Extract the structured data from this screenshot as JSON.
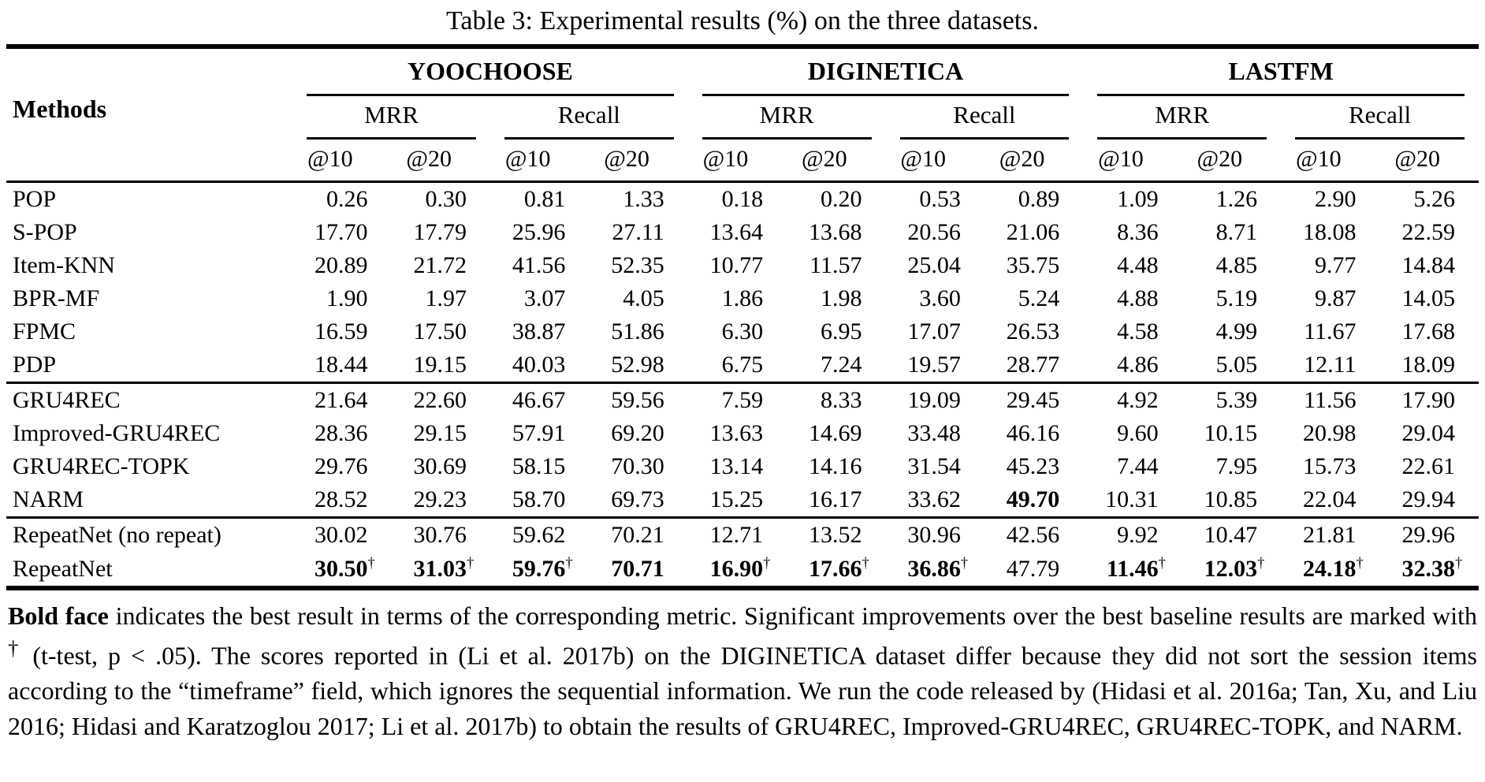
{
  "caption": "Table 3: Experimental results (%) on the three datasets.",
  "table": {
    "methods_label": "Methods",
    "dataset_groups": [
      "YOOCHOOSE",
      "DIGINETICA",
      "LASTFM"
    ],
    "metric_labels": [
      "MRR",
      "Recall"
    ],
    "cutoff_labels": [
      "@10",
      "@20"
    ],
    "sections": [
      {
        "name": "popularity-baselines",
        "rows": [
          {
            "method": "POP",
            "values": [
              "0.26",
              "0.30",
              "0.81",
              "1.33",
              "0.18",
              "0.20",
              "0.53",
              "0.89",
              "1.09",
              "1.26",
              "2.90",
              "5.26"
            ]
          },
          {
            "method": "S-POP",
            "values": [
              "17.70",
              "17.79",
              "25.96",
              "27.11",
              "13.64",
              "13.68",
              "20.56",
              "21.06",
              "8.36",
              "8.71",
              "18.08",
              "22.59"
            ]
          },
          {
            "method": "Item-KNN",
            "values": [
              "20.89",
              "21.72",
              "41.56",
              "52.35",
              "10.77",
              "11.57",
              "25.04",
              "35.75",
              "4.48",
              "4.85",
              "9.77",
              "14.84"
            ]
          },
          {
            "method": "BPR-MF",
            "values": [
              "1.90",
              "1.97",
              "3.07",
              "4.05",
              "1.86",
              "1.98",
              "3.60",
              "5.24",
              "4.88",
              "5.19",
              "9.87",
              "14.05"
            ]
          },
          {
            "method": "FPMC",
            "values": [
              "16.59",
              "17.50",
              "38.87",
              "51.86",
              "6.30",
              "6.95",
              "17.07",
              "26.53",
              "4.58",
              "4.99",
              "11.67",
              "17.68"
            ]
          },
          {
            "method": "PDP",
            "values": [
              "18.44",
              "19.15",
              "40.03",
              "52.98",
              "6.75",
              "7.24",
              "19.57",
              "28.77",
              "4.86",
              "5.05",
              "12.11",
              "18.09"
            ]
          }
        ]
      },
      {
        "name": "neural-baselines",
        "rows": [
          {
            "method": "GRU4REC",
            "values": [
              "21.64",
              "22.60",
              "46.67",
              "59.56",
              "7.59",
              "8.33",
              "19.09",
              "29.45",
              "4.92",
              "5.39",
              "11.56",
              "17.90"
            ]
          },
          {
            "method": "Improved-GRU4REC",
            "values": [
              "28.36",
              "29.15",
              "57.91",
              "69.20",
              "13.63",
              "14.69",
              "33.48",
              "46.16",
              "9.60",
              "10.15",
              "20.98",
              "29.04"
            ]
          },
          {
            "method": "GRU4REC-TOPK",
            "values": [
              "29.76",
              "30.69",
              "58.15",
              "70.30",
              "13.14",
              "14.16",
              "31.54",
              "45.23",
              "7.44",
              "7.95",
              "15.73",
              "22.61"
            ]
          },
          {
            "method": "NARM",
            "values": [
              "28.52",
              "29.23",
              "58.70",
              "69.73",
              "15.25",
              "16.17",
              "33.62",
              {
                "v": "49.70",
                "bold": true
              },
              "10.31",
              "10.85",
              "22.04",
              "29.94"
            ]
          }
        ]
      },
      {
        "name": "repeatnet",
        "rows": [
          {
            "method": "RepeatNet (no repeat)",
            "values": [
              "30.02",
              "30.76",
              "59.62",
              "70.21",
              "12.71",
              "13.52",
              "30.96",
              "42.56",
              "9.92",
              "10.47",
              "21.81",
              "29.96"
            ]
          },
          {
            "method": "RepeatNet",
            "values": [
              {
                "v": "30.50",
                "bold": true,
                "dagger": true
              },
              {
                "v": "31.03",
                "bold": true,
                "dagger": true
              },
              {
                "v": "59.76",
                "bold": true,
                "dagger": true
              },
              {
                "v": "70.71",
                "bold": true
              },
              {
                "v": "16.90",
                "bold": true,
                "dagger": true
              },
              {
                "v": "17.66",
                "bold": true,
                "dagger": true
              },
              {
                "v": "36.86",
                "bold": true,
                "dagger": true
              },
              "47.79",
              {
                "v": "11.46",
                "bold": true,
                "dagger": true
              },
              {
                "v": "12.03",
                "bold": true,
                "dagger": true
              },
              {
                "v": "24.18",
                "bold": true,
                "dagger": true
              },
              {
                "v": "32.38",
                "bold": true,
                "dagger": true
              }
            ]
          }
        ]
      }
    ]
  },
  "note": {
    "lead": "Bold face",
    "body_1": " indicates the best result in terms of the corresponding metric. Significant improvements over the best baseline results are marked with ",
    "dagger": "†",
    "body_2": " (t-test, p < .05). The scores reported in (Li et al. 2017b) on the DIGINETICA dataset differ because they did not sort the session items according to the “timeframe” field, which ignores the sequential information. We run the code released by (Hidasi et al. 2016a; Tan, Xu, and Liu 2016; Hidasi and Karatzoglou 2017; Li et al. 2017b) to obtain the results of GRU4REC, Improved-GRU4REC, GRU4REC-TOPK, and NARM."
  }
}
